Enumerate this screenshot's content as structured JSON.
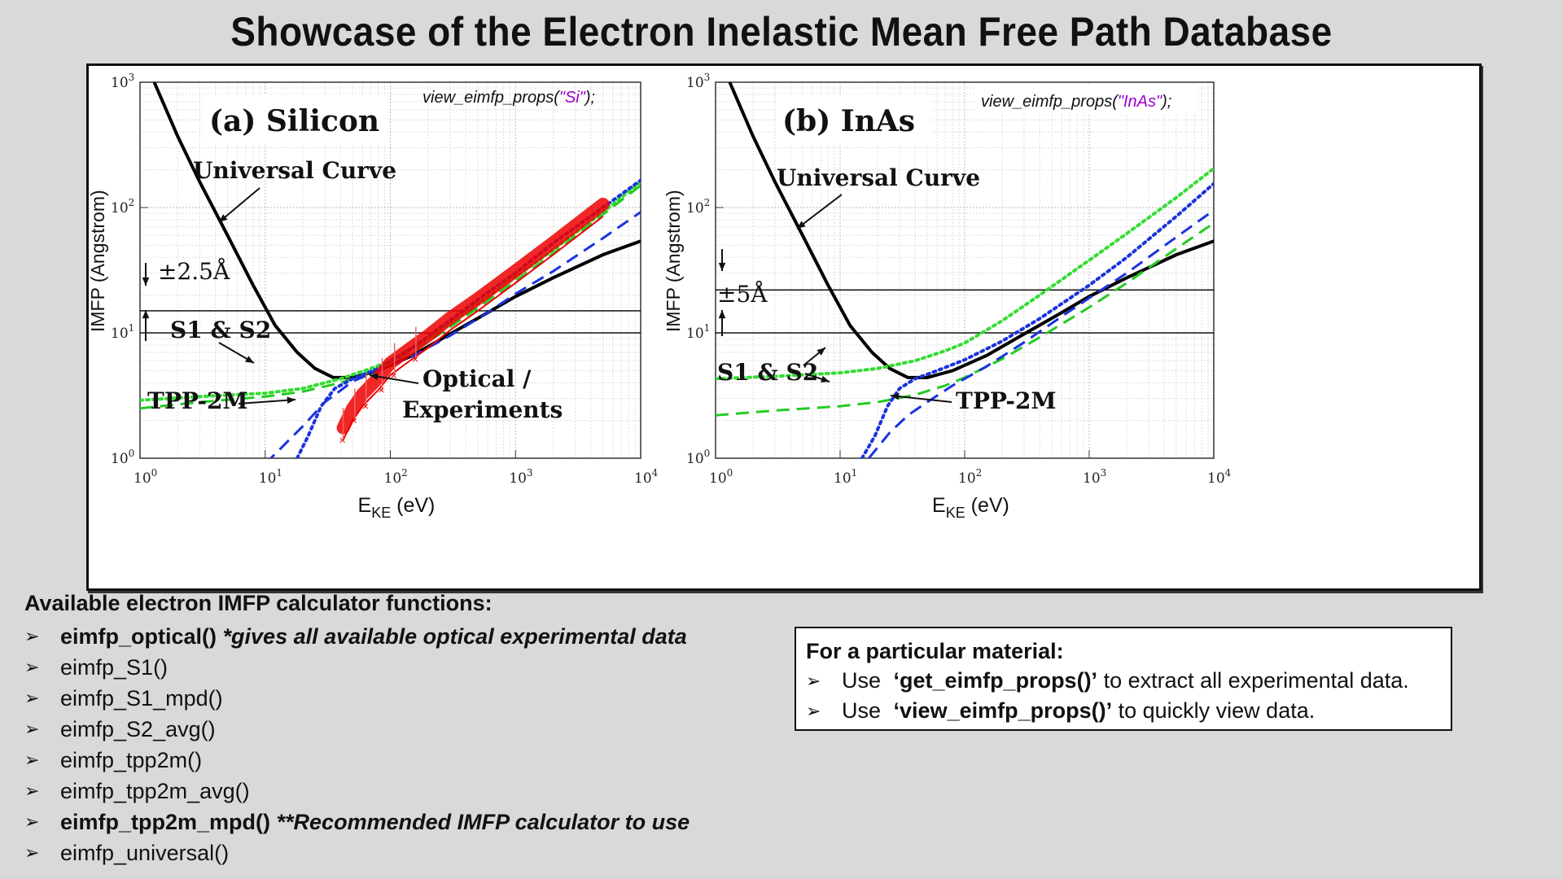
{
  "title": "Showcase of the Electron Inelastic Mean Free Path Database",
  "chart_data": [
    {
      "type": "line",
      "panel_label": "(a) Silicon",
      "code_call": "view_eimfp_props(",
      "code_arg": "\"Si\"",
      "code_end": ");",
      "xlabel_main": "E",
      "xlabel_sub": "KE",
      "xlabel_unit": " (eV)",
      "ylabel": "IMFP (Angstrom)",
      "xscale": "log",
      "yscale": "log",
      "xlim": [
        1,
        10000
      ],
      "ylim": [
        1,
        1000
      ],
      "x_ticks": [
        1,
        10,
        100,
        1000,
        10000
      ],
      "y_ticks": [
        1,
        10,
        100,
        1000
      ],
      "tick_base": "10",
      "tick_exps": [
        "0",
        "1",
        "2",
        "3",
        "4"
      ],
      "y_tick_exps": [
        "0",
        "1",
        "2",
        "3"
      ],
      "grid": true,
      "hlines": [
        15,
        10
      ],
      "series": [
        {
          "name": "Universal Curve",
          "color": "#000000",
          "style": "solid",
          "x": [
            1.3,
            2,
            3,
            5,
            8,
            12,
            18,
            25,
            35,
            50,
            80,
            150,
            300,
            600,
            1000,
            2000,
            5000,
            10000
          ],
          "y": [
            1000,
            370,
            160,
            60,
            24,
            11.5,
            7,
            5.2,
            4.4,
            4.4,
            5.0,
            6.6,
            9.8,
            14.5,
            19.5,
            27.5,
            42,
            54
          ]
        },
        {
          "name": "S1",
          "color": "#33dd33",
          "style": "dotted",
          "x": [
            1,
            3,
            10,
            20,
            40,
            70,
            100,
            200,
            400,
            1000,
            2000,
            5000,
            10000
          ],
          "y": [
            2.9,
            3.1,
            3.3,
            3.6,
            4.3,
            5.2,
            6.0,
            9.0,
            14.5,
            28,
            46,
            92,
            160
          ]
        },
        {
          "name": "S2",
          "color": "#22cc22",
          "style": "dashed",
          "x": [
            1,
            3,
            10,
            20,
            40,
            70,
            100,
            200,
            400,
            1000,
            2000,
            5000,
            10000
          ],
          "y": [
            2.5,
            2.8,
            3.1,
            3.4,
            4.0,
            4.9,
            5.7,
            8.5,
            13.5,
            26,
            43,
            88,
            150
          ]
        },
        {
          "name": "TPP-2M",
          "color": "#1a33dd",
          "style": "dotted",
          "x": [
            18,
            22,
            28,
            36,
            50,
            80,
            150,
            300,
            600,
            1000,
            2000,
            5000,
            10000
          ],
          "y": [
            1,
            1.5,
            2.6,
            3.6,
            4.3,
            5.2,
            7.6,
            12.6,
            21,
            30,
            52,
            100,
            165
          ]
        },
        {
          "name": "TPP-2M",
          "color": "#1a33dd",
          "style": "dashed",
          "x": [
            10,
            20,
            30,
            50,
            80,
            150,
            300,
            600,
            1000,
            2000,
            5000,
            10000
          ],
          "y": [
            0.9,
            1.8,
            2.8,
            4.1,
            5.0,
            6.5,
            9.5,
            14.5,
            20.5,
            31,
            57,
            92
          ]
        },
        {
          "name": "Optical / Experiments",
          "color": "#ee0000",
          "style": "band",
          "x": [
            42,
            50,
            60,
            80,
            100,
            150,
            200,
            300,
            500,
            1000,
            2000,
            5000
          ],
          "y": [
            1.4,
            2.0,
            2.6,
            3.5,
            4.6,
            6.2,
            7.6,
            10.5,
            15,
            25,
            42,
            85
          ]
        }
      ],
      "annotations": [
        "Universal Curve",
        "±2.5Å",
        "S1 & S2",
        "TPP-2M",
        "Optical /",
        "Experiments"
      ]
    },
    {
      "type": "line",
      "panel_label": "(b) InAs",
      "code_call": "view_eimfp_props(",
      "code_arg": "\"InAs\"",
      "code_end": ");",
      "xlabel_main": "E",
      "xlabel_sub": "KE",
      "xlabel_unit": " (eV)",
      "ylabel": "IMFP (Angstrom)",
      "xscale": "log",
      "yscale": "log",
      "xlim": [
        1,
        10000
      ],
      "ylim": [
        1,
        1000
      ],
      "x_ticks": [
        1,
        10,
        100,
        1000,
        10000
      ],
      "y_ticks": [
        1,
        10,
        100,
        1000
      ],
      "tick_base": "10",
      "tick_exps": [
        "0",
        "1",
        "2",
        "3",
        "4"
      ],
      "y_tick_exps": [
        "0",
        "1",
        "2",
        "3"
      ],
      "grid": true,
      "hlines": [
        22,
        10
      ],
      "series": [
        {
          "name": "Universal Curve",
          "color": "#000000",
          "style": "solid",
          "x": [
            1.3,
            2,
            3,
            5,
            8,
            12,
            18,
            25,
            35,
            50,
            80,
            150,
            300,
            600,
            1000,
            2000,
            5000,
            10000
          ],
          "y": [
            1000,
            370,
            160,
            60,
            24,
            11.5,
            7,
            5.2,
            4.4,
            4.4,
            5.0,
            6.6,
            9.8,
            14.5,
            19.5,
            27.5,
            42,
            54
          ]
        },
        {
          "name": "S1",
          "color": "#33dd33",
          "style": "dotted",
          "x": [
            1,
            3,
            10,
            20,
            40,
            70,
            100,
            200,
            400,
            1000,
            2000,
            5000,
            10000
          ],
          "y": [
            4.3,
            4.5,
            4.8,
            5.2,
            6.0,
            7.2,
            8.3,
            12.5,
            20,
            38,
            62,
            120,
            205
          ]
        },
        {
          "name": "S2",
          "color": "#22cc22",
          "style": "dashed",
          "x": [
            1,
            3,
            10,
            20,
            40,
            70,
            100,
            200,
            400,
            1000,
            2000,
            5000,
            10000
          ],
          "y": [
            2.2,
            2.4,
            2.6,
            2.8,
            3.2,
            3.8,
            4.4,
            6.2,
            9.2,
            16,
            25,
            47,
            75
          ]
        },
        {
          "name": "TPP-2M",
          "color": "#1a33dd",
          "style": "dotted",
          "x": [
            15,
            19,
            24,
            30,
            40,
            60,
            100,
            200,
            400,
            1000,
            2000,
            5000,
            10000
          ],
          "y": [
            1,
            1.5,
            2.6,
            3.6,
            4.3,
            5.0,
            6.1,
            8.6,
            13,
            24,
            40,
            85,
            155
          ]
        },
        {
          "name": "TPP-2M",
          "color": "#1a33dd",
          "style": "dashed",
          "x": [
            17,
            25,
            35,
            50,
            80,
            150,
            300,
            600,
            1000,
            2000,
            5000,
            10000
          ],
          "y": [
            1,
            1.6,
            2.2,
            2.8,
            3.8,
            5.4,
            8.4,
            13.5,
            19,
            30,
            58,
            95
          ]
        }
      ],
      "annotations": [
        "Universal Curve",
        "±5Å",
        "S1 & S2",
        "TPP-2M"
      ]
    }
  ],
  "functions": {
    "heading": "Available electron IMFP calculator functions:",
    "items": [
      {
        "name": "eimfp_optical()",
        "bold": true,
        "note": " *gives all available optical experimental data"
      },
      {
        "name": "eimfp_S1()",
        "bold": false,
        "note": ""
      },
      {
        "name": "eimfp_S1_mpd()",
        "bold": false,
        "note": ""
      },
      {
        "name": "eimfp_S2_avg()",
        "bold": false,
        "note": ""
      },
      {
        "name": "eimfp_tpp2m()",
        "bold": false,
        "note": ""
      },
      {
        "name": "eimfp_tpp2m_avg()",
        "bold": false,
        "note": ""
      },
      {
        "name": "eimfp_tpp2m_mpd()",
        "bold": true,
        "note": " **Recommended IMFP calculator to use"
      },
      {
        "name": "eimfp_universal()",
        "bold": false,
        "note": ""
      }
    ]
  },
  "info_box": {
    "heading": "For a particular material:",
    "line1_pre": "Use ",
    "line1_fn": "‘get_eimfp_props()’",
    "line1_post": " to extract all experimental data.",
    "line2_pre": "Use ",
    "line2_fn": "‘view_eimfp_props()’",
    "line2_post": " to quickly view data."
  },
  "bullet": "➢"
}
